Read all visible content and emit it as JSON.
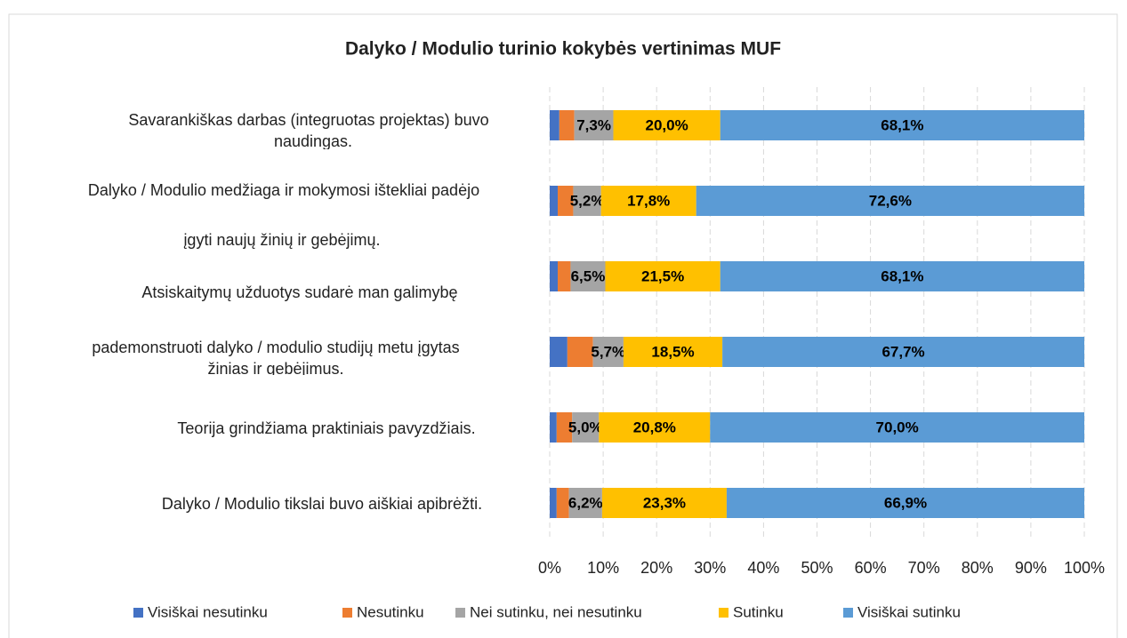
{
  "chart_data": {
    "type": "stacked_bar_horizontal",
    "title": "Dalyko / Modulio turinio kokybės vertinimas MUF",
    "categories": [
      [
        "Savarankiškas darbas (integruotas projektas) buvo",
        "naudingas."
      ],
      [
        "Dalyko / Modulio medžiaga ir mokymosi ištekliai padėjo",
        "įgyti naujų žinių ir gebėjimų."
      ],
      [
        "Atsiskaitymų užduotys sudarė man galimybę"
      ],
      [
        "pademonstruoti dalyko / modulio studijų metu įgytas",
        "žinias ir gebėjimus."
      ],
      [
        "Teorija grindžiama praktiniais pavyzdžiais."
      ],
      [
        "Dalyko / Modulio tikslai buvo aiškiai apibrėžti."
      ]
    ],
    "series": [
      {
        "name": "Visiškai nesutinku",
        "color": "#4472c4",
        "values": [
          1.8,
          1.5,
          1.5,
          3.3,
          1.3,
          1.3
        ]
      },
      {
        "name": "Nesutinku",
        "color": "#ed7d31",
        "values": [
          2.8,
          2.9,
          2.4,
          4.8,
          2.9,
          2.3
        ]
      },
      {
        "name": "Nei sutinku, nei nesutinku",
        "color": "#a5a5a5",
        "values": [
          7.3,
          5.2,
          6.5,
          5.7,
          5.0,
          6.2
        ],
        "value_labels": [
          "7,3%",
          "5,2%",
          "6,5%",
          "5,7%",
          "5,0%",
          "6,2%"
        ]
      },
      {
        "name": "Sutinku",
        "color": "#ffc000",
        "values": [
          20.0,
          17.8,
          21.5,
          18.5,
          20.8,
          23.3
        ],
        "value_labels": [
          "20,0%",
          "17,8%",
          "21,5%",
          "18,5%",
          "20,8%",
          "23,3%"
        ]
      },
      {
        "name": "Visiškai sutinku",
        "color": "#5b9bd5",
        "values": [
          68.1,
          72.6,
          68.1,
          67.7,
          70.0,
          66.9
        ],
        "value_labels": [
          "68,1%",
          "72,6%",
          "68,1%",
          "67,7%",
          "70,0%",
          "66,9%"
        ]
      }
    ],
    "xlim": [
      0,
      100
    ],
    "xticks": [
      {
        "value": 0,
        "label": "0%"
      },
      {
        "value": 10,
        "label": "10%"
      },
      {
        "value": 20,
        "label": "20%"
      },
      {
        "value": 30,
        "label": "30%"
      },
      {
        "value": 40,
        "label": "40%"
      },
      {
        "value": 50,
        "label": "50%"
      },
      {
        "value": 60,
        "label": "60%"
      },
      {
        "value": 70,
        "label": "70%"
      },
      {
        "value": 80,
        "label": "80%"
      },
      {
        "value": 90,
        "label": "90%"
      },
      {
        "value": 100,
        "label": "100%"
      }
    ],
    "grid": true,
    "legend": "bottom"
  }
}
